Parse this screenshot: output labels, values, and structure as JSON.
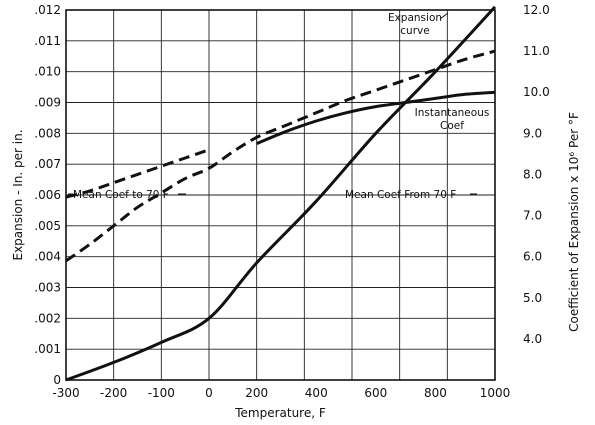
{
  "chart_data": {
    "type": "line",
    "title": "",
    "xlabel": "Temperature, F",
    "ylabel": "Expansion - In. per in.",
    "y2label": "Coefficient of Expansion x 10⁶ Per °F",
    "xlim": [
      -300,
      1000
    ],
    "ylim": [
      0,
      0.012
    ],
    "y2lim": [
      3.0,
      12.0
    ],
    "grid": true,
    "x_ticks": [
      -300,
      -200,
      -100,
      0,
      200,
      400,
      600,
      800,
      1000
    ],
    "x_tick_labels": [
      "-300",
      "-200",
      "-100",
      "0",
      "200",
      "400",
      "600",
      "800",
      "1000"
    ],
    "y_ticks": [
      0,
      0.001,
      0.002,
      0.003,
      0.004,
      0.005,
      0.006,
      0.007,
      0.008,
      0.009,
      0.01,
      0.011,
      0.012
    ],
    "y_tick_labels": [
      "0",
      ".001",
      ".002",
      ".003",
      ".004",
      ".005",
      ".006",
      ".007",
      ".008",
      ".009",
      ".010",
      ".011",
      ".012"
    ],
    "y2_ticks": [
      4.0,
      5.0,
      6.0,
      7.0,
      8.0,
      9.0,
      10.0,
      11.0,
      12.0
    ],
    "y2_tick_labels": [
      "4.0",
      "5.0",
      "6.0",
      "7.0",
      "8.0",
      "9.0",
      "10.0",
      "11.0",
      "12.0"
    ],
    "series": [
      {
        "name": "Expansion curve",
        "axis": "left",
        "style": "solid",
        "x": [
          -300,
          -200,
          -100,
          0,
          200,
          400,
          600,
          800,
          1000
        ],
        "y": [
          0,
          0.00057,
          0.00122,
          0.002,
          0.0038,
          0.0058,
          0.008,
          0.01,
          0.0121
        ]
      },
      {
        "name": "Instantaneous Coef",
        "axis": "right",
        "style": "dashed",
        "x": [
          -300,
          -250,
          -200,
          -150,
          -100,
          -50,
          0,
          100,
          200,
          300,
          400,
          500,
          600,
          700,
          800,
          900,
          1000
        ],
        "y": [
          5.9,
          6.3,
          6.75,
          7.2,
          7.55,
          7.9,
          8.15,
          8.55,
          8.9,
          9.2,
          9.5,
          9.8,
          10.05,
          10.3,
          10.55,
          10.8,
          11.0
        ]
      },
      {
        "name": "Mean Coef to 70 F",
        "axis": "right",
        "style": "dashed",
        "x": [
          -300,
          -250,
          -200,
          -150,
          -100,
          -50,
          0
        ],
        "y": [
          7.45,
          7.6,
          7.8,
          8.0,
          8.2,
          8.4,
          8.6
        ]
      },
      {
        "name": "Mean Coef From 70 F",
        "axis": "right",
        "style": "solid",
        "x": [
          200,
          300,
          400,
          500,
          600,
          700,
          800,
          900,
          1000
        ],
        "y": [
          8.75,
          9.05,
          9.3,
          9.5,
          9.65,
          9.75,
          9.85,
          9.95,
          10.0
        ]
      }
    ],
    "annotations": [
      {
        "id": "expansion",
        "lines": [
          "Expansion",
          "curve"
        ]
      },
      {
        "id": "instantaneous",
        "lines": [
          "Instantaneous",
          "Coef"
        ]
      },
      {
        "id": "mean_to",
        "lines": [
          "Mean Coef  to 70 F"
        ]
      },
      {
        "id": "mean_from",
        "lines": [
          "Mean Coef   From 70 F"
        ]
      }
    ]
  }
}
